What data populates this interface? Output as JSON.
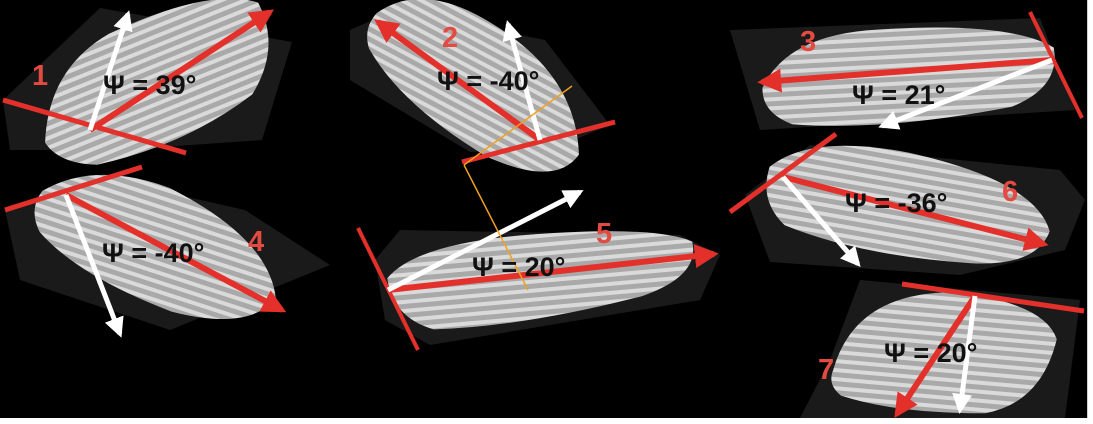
{
  "colors": {
    "background": "#000000",
    "specimen": "#bdbdbd",
    "red_arrow": "#e3302a",
    "white_arrow": "#ffffff",
    "number": "#e34a41",
    "label": "#111111",
    "construction_line": "#f0a020"
  },
  "specimens": [
    {
      "number": "1",
      "psi": "Ψ = 39°"
    },
    {
      "number": "2",
      "psi": "Ψ = -40°"
    },
    {
      "number": "3",
      "psi": "Ψ = 21°"
    },
    {
      "number": "4",
      "psi": "Ψ = -40°"
    },
    {
      "number": "5",
      "psi": "Ψ = 20°"
    },
    {
      "number": "6",
      "psi": "Ψ = -36°"
    },
    {
      "number": "7",
      "psi": "Ψ = 20°"
    }
  ]
}
